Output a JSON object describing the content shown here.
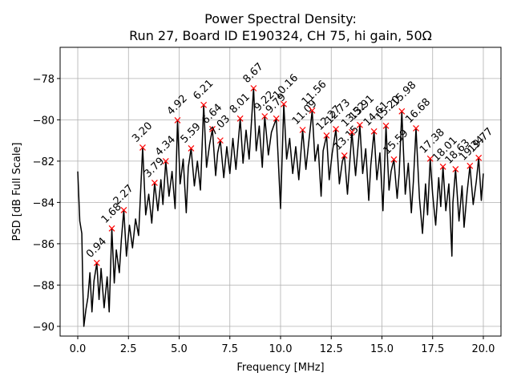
{
  "chart_data": {
    "type": "line",
    "title": "Power Spectral Density:",
    "subtitle": "Run 27, Board ID E190324, CH 75, hi gain, 50Ω",
    "xlabel": "Frequency [MHz]",
    "ylabel": "PSD [dB Full Scale]",
    "xlim": [
      -0.87,
      20.87
    ],
    "ylim": [
      -90.47,
      -76.49
    ],
    "xticks": [
      {
        "value": 0,
        "label": "0.0"
      },
      {
        "value": 2.5,
        "label": "2.5"
      },
      {
        "value": 5,
        "label": "5.0"
      },
      {
        "value": 7.5,
        "label": "7.5"
      },
      {
        "value": 10,
        "label": "10.0"
      },
      {
        "value": 12.5,
        "label": "12.5"
      },
      {
        "value": 15,
        "label": "15.0"
      },
      {
        "value": 17.5,
        "label": "17.5"
      },
      {
        "value": 20,
        "label": "20.0"
      }
    ],
    "yticks": [
      {
        "value": -90,
        "label": "−90"
      },
      {
        "value": -88,
        "label": "−88"
      },
      {
        "value": -86,
        "label": "−86"
      },
      {
        "value": -84,
        "label": "−84"
      },
      {
        "value": -82,
        "label": "−82"
      },
      {
        "value": -80,
        "label": "−80"
      },
      {
        "value": -78,
        "label": "−78"
      }
    ],
    "grid": true,
    "series": [
      {
        "color": "#000000",
        "x": [
          0.0,
          0.1,
          0.2,
          0.25,
          0.3,
          0.4,
          0.5,
          0.6,
          0.7,
          0.8,
          0.94,
          1.05,
          1.15,
          1.3,
          1.45,
          1.55,
          1.68,
          1.8,
          1.9,
          2.05,
          2.15,
          2.27,
          2.4,
          2.55,
          2.7,
          2.85,
          3.0,
          3.2,
          3.35,
          3.5,
          3.65,
          3.79,
          3.95,
          4.1,
          4.2,
          4.34,
          4.5,
          4.65,
          4.8,
          4.92,
          5.05,
          5.2,
          5.35,
          5.45,
          5.59,
          5.75,
          5.9,
          6.05,
          6.21,
          6.35,
          6.5,
          6.64,
          6.8,
          6.9,
          7.03,
          7.2,
          7.35,
          7.5,
          7.65,
          7.8,
          8.01,
          8.15,
          8.3,
          8.45,
          8.67,
          8.8,
          8.95,
          9.1,
          9.22,
          9.4,
          9.55,
          9.79,
          9.9,
          10.0,
          10.16,
          10.3,
          10.45,
          10.6,
          10.75,
          10.9,
          11.09,
          11.25,
          11.4,
          11.56,
          11.7,
          11.85,
          12.0,
          12.1,
          12.27,
          12.4,
          12.55,
          12.73,
          12.9,
          13.05,
          13.15,
          13.3,
          13.52,
          13.7,
          13.91,
          14.05,
          14.2,
          14.35,
          14.45,
          14.61,
          14.75,
          14.9,
          15.05,
          15.2,
          15.35,
          15.45,
          15.59,
          15.75,
          15.85,
          15.98,
          16.15,
          16.3,
          16.45,
          16.55,
          16.68,
          16.85,
          17.0,
          17.15,
          17.25,
          17.38,
          17.5,
          17.65,
          17.8,
          17.9,
          18.01,
          18.15,
          18.3,
          18.45,
          18.5,
          18.63,
          18.8,
          18.95,
          19.05,
          19.2,
          19.34,
          19.5,
          19.65,
          19.77,
          19.9,
          20.0
        ],
        "values": [
          -82.5,
          -84.9,
          -85.5,
          -88.1,
          -90.0,
          -89.2,
          -88.6,
          -87.4,
          -89.3,
          -87.8,
          -86.93,
          -88.7,
          -87.2,
          -89.1,
          -87.6,
          -89.3,
          -85.26,
          -87.9,
          -86.3,
          -87.4,
          -85.8,
          -84.37,
          -86.6,
          -85.1,
          -86.2,
          -84.8,
          -85.6,
          -81.34,
          -84.6,
          -83.6,
          -85.0,
          -83.05,
          -84.4,
          -82.9,
          -84.1,
          -82.0,
          -83.7,
          -82.5,
          -84.3,
          -80.02,
          -83.1,
          -81.9,
          -84.5,
          -82.3,
          -81.38,
          -83.2,
          -82.0,
          -83.4,
          -79.28,
          -82.3,
          -81.2,
          -80.45,
          -82.7,
          -81.6,
          -81.0,
          -82.8,
          -81.3,
          -82.6,
          -80.9,
          -82.4,
          -79.94,
          -82.1,
          -80.5,
          -81.9,
          -78.47,
          -81.5,
          -80.3,
          -82.3,
          -79.83,
          -81.7,
          -80.6,
          -79.94,
          -82.2,
          -84.3,
          -79.24,
          -81.9,
          -80.9,
          -82.6,
          -81.3,
          -82.9,
          -80.49,
          -82.4,
          -81.0,
          -79.55,
          -82.0,
          -81.2,
          -83.7,
          -81.5,
          -80.76,
          -82.9,
          -81.6,
          -80.45,
          -83.1,
          -82.0,
          -81.73,
          -83.6,
          -80.6,
          -82.7,
          -80.25,
          -82.6,
          -81.4,
          -83.9,
          -82.2,
          -80.56,
          -82.9,
          -81.6,
          -84.4,
          -80.29,
          -83.4,
          -82.5,
          -81.92,
          -83.8,
          -82.6,
          -79.59,
          -83.6,
          -82.1,
          -84.5,
          -83.0,
          -80.41,
          -83.8,
          -85.5,
          -83.1,
          -84.6,
          -81.88,
          -83.6,
          -85.1,
          -82.8,
          -84.2,
          -82.27,
          -84.4,
          -83.1,
          -86.6,
          -84.0,
          -82.39,
          -84.9,
          -83.2,
          -85.2,
          -83.5,
          -82.23,
          -84.1,
          -83.0,
          -81.84,
          -83.9,
          -82.6
        ]
      }
    ],
    "peaks": {
      "color": "#ff0000",
      "x": [
        0.94,
        1.68,
        2.27,
        3.2,
        3.79,
        4.34,
        4.92,
        5.59,
        6.21,
        6.64,
        7.03,
        8.01,
        8.67,
        9.22,
        9.79,
        10.16,
        11.09,
        11.56,
        12.27,
        12.73,
        13.15,
        13.52,
        13.91,
        14.61,
        15.2,
        15.59,
        15.98,
        16.68,
        17.38,
        18.01,
        18.63,
        19.34,
        19.77
      ],
      "values": [
        -86.93,
        -85.26,
        -84.37,
        -81.34,
        -83.05,
        -82.0,
        -80.02,
        -81.38,
        -79.28,
        -80.45,
        -81.0,
        -79.94,
        -78.47,
        -79.83,
        -79.94,
        -79.24,
        -80.49,
        -79.55,
        -80.76,
        -80.45,
        -81.73,
        -80.6,
        -80.25,
        -80.56,
        -80.29,
        -81.92,
        -79.59,
        -80.41,
        -81.88,
        -82.27,
        -82.39,
        -82.23,
        -81.84
      ],
      "x_labels": [
        "0.94",
        "1.68",
        "2.27",
        "3.20",
        "3.79",
        "4.34",
        "4.92",
        "5.59",
        "6.21",
        "6.64",
        "7.03",
        "8.01",
        "8.67",
        "9.22",
        "9.79",
        "10.16",
        "11.09",
        "11.56",
        "12.27",
        "12.73",
        "13.15",
        "13.52",
        "13.91",
        "14.61",
        "15.20",
        "15.59",
        "15.98",
        "16.68",
        "17.38",
        "18.01",
        "18.63",
        "19.34",
        "19.77"
      ]
    }
  }
}
